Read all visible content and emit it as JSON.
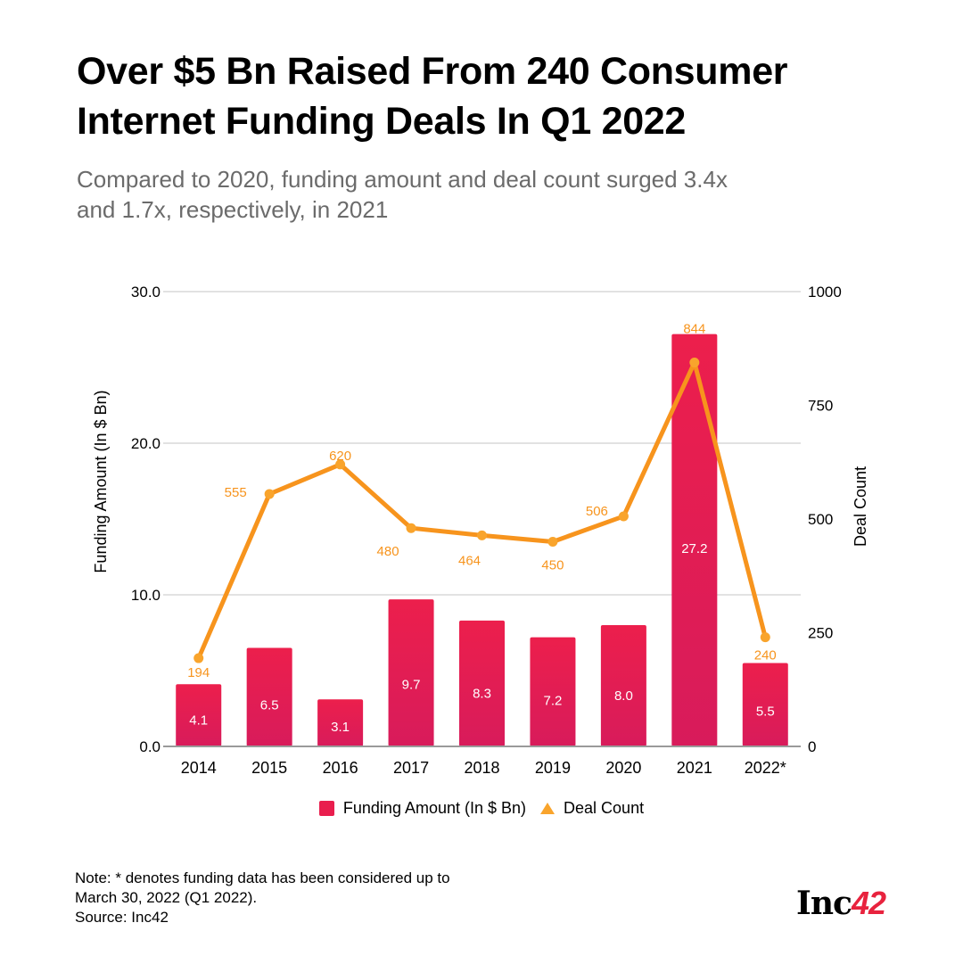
{
  "header": {
    "title_line1": "Over $5 Bn Raised From 240 Consumer",
    "title_line2": "Internet Funding Deals In Q1 2022",
    "subtitle_line1": "Compared to 2020, funding amount and deal count surged 3.4x",
    "subtitle_line2": "and 1.7x, respectively, in 2021"
  },
  "chart_data": {
    "type": "bar",
    "title": "Over $5 Bn Raised From 240 Consumer Internet Funding Deals In Q1 2022",
    "subtitle": "Compared to 2020, funding amount and deal count surged 3.4x and 1.7x, respectively, in 2021",
    "categories": [
      "2014",
      "2015",
      "2016",
      "2017",
      "2018",
      "2019",
      "2020",
      "2021",
      "2022*"
    ],
    "series": [
      {
        "name": "Funding Amount (In $ Bn)",
        "type": "bar",
        "axis": "left",
        "color": "#e91e4e",
        "values": [
          4.1,
          6.5,
          3.1,
          9.7,
          8.3,
          7.2,
          8.0,
          27.2,
          5.5
        ],
        "labels": [
          "4.1",
          "6.5",
          "3.1",
          "9.7",
          "8.3",
          "7.2",
          "8.0",
          "27.2",
          "5.5"
        ]
      },
      {
        "name": "Deal Count",
        "type": "line",
        "axis": "right",
        "color": "#f7941d",
        "values": [
          194,
          555,
          620,
          480,
          464,
          450,
          506,
          844,
          240
        ],
        "labels": [
          "194",
          "555",
          "620",
          "480",
          "464",
          "450",
          "506",
          "844",
          "240"
        ]
      }
    ],
    "ylabel": "Funding Amount (In $ Bn)",
    "y2label": "Deal Count",
    "xlabel": "",
    "ylim": [
      0,
      30
    ],
    "y2lim": [
      0,
      1000
    ],
    "yticks": [
      "0.0",
      "10.0",
      "20.0",
      "30.0"
    ],
    "yticks_values": [
      0,
      10,
      20,
      30
    ],
    "y2ticks": [
      "0",
      "250",
      "500",
      "750",
      "1000"
    ],
    "y2ticks_values": [
      0,
      250,
      500,
      750,
      1000
    ],
    "grid": true,
    "legend_position": "bottom-center"
  },
  "legend": {
    "funding_label": "Funding Amount (In $ Bn)",
    "deal_label": "Deal Count"
  },
  "footer": {
    "note_line1": "Note: * denotes funding data has been considered up to",
    "note_line2": "March 30, 2022 (Q1 2022).",
    "source": "Source: Inc42",
    "logo_text": "Inc",
    "logo_num": "42"
  }
}
